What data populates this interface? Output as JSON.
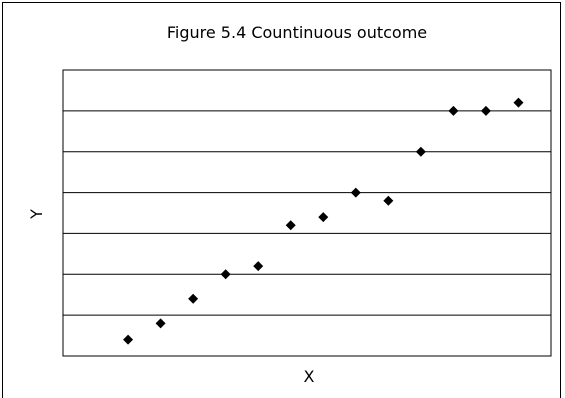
{
  "chart_data": {
    "type": "scatter",
    "title": "Figure 5.4  Countinuous outcome",
    "xlabel": "X",
    "ylabel": "Y",
    "grid": true,
    "legend": "none",
    "ylim": [
      0,
      7
    ],
    "xlim": [
      0,
      15
    ],
    "marker": "diamond",
    "colors": {
      "marker": "#000000",
      "grid": "#000000",
      "background": "#ffffff"
    },
    "series": [
      {
        "x": [
          2,
          3,
          4,
          5,
          6,
          7,
          8,
          9,
          10,
          11,
          12,
          13,
          14
        ],
        "y": [
          0.4,
          0.8,
          1.4,
          2.0,
          2.2,
          3.2,
          3.4,
          4.0,
          3.8,
          5.0,
          6.0,
          6.0,
          6.2
        ]
      }
    ]
  }
}
